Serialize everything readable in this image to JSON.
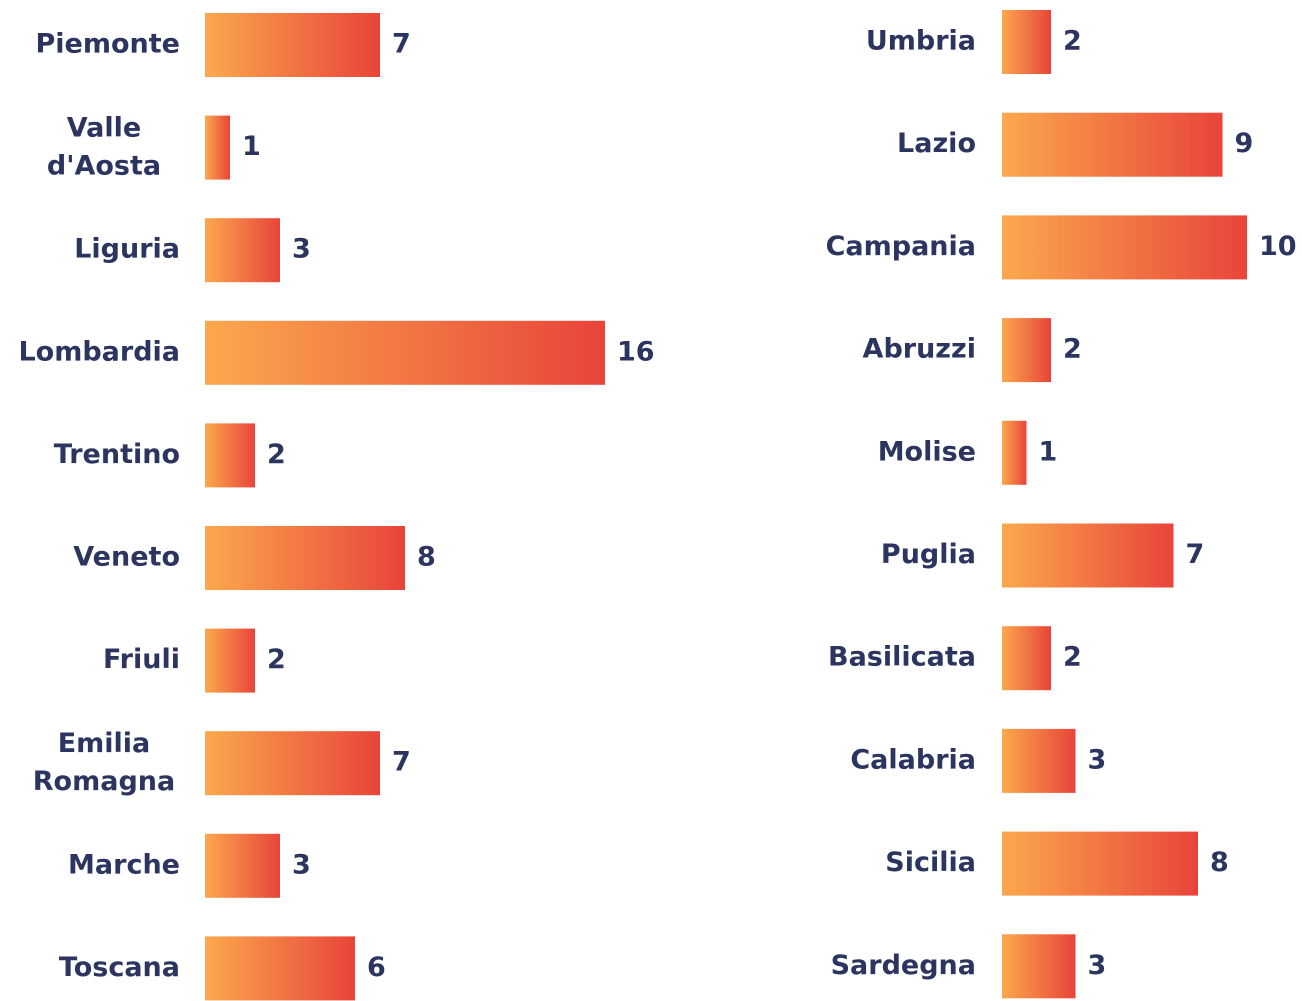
{
  "chart_data": [
    {
      "type": "bar",
      "orientation": "horizontal",
      "categories": [
        "Piemonte",
        "Valle d'Aosta",
        "Liguria",
        "Lombardia",
        "Trentino",
        "Veneto",
        "Friuli",
        "Emilia Romagna",
        "Marche",
        "Toscana"
      ],
      "values": [
        7,
        1,
        3,
        16,
        2,
        8,
        2,
        7,
        3,
        6
      ],
      "colors": [
        "#fba84d",
        "#e8443a"
      ]
    },
    {
      "type": "bar",
      "orientation": "horizontal",
      "categories": [
        "Umbria",
        "Lazio",
        "Campania",
        "Abruzzi",
        "Molise",
        "Puglia",
        "Basilicata",
        "Calabria",
        "Sicilia",
        "Sardegna"
      ],
      "values": [
        2,
        9,
        10,
        2,
        1,
        7,
        2,
        3,
        8,
        3
      ],
      "colors": [
        "#fba84d",
        "#e8443a"
      ]
    }
  ]
}
